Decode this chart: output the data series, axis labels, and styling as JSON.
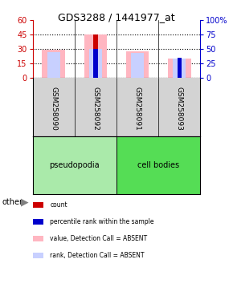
{
  "title": "GDS3288 / 1441977_at",
  "samples": [
    "GSM258090",
    "GSM258092",
    "GSM258091",
    "GSM258093"
  ],
  "ylim_left": [
    0,
    60
  ],
  "ylim_right": [
    0,
    100
  ],
  "yticks_left": [
    0,
    15,
    30,
    45,
    60
  ],
  "yticks_right": [
    0,
    25,
    50,
    75,
    100
  ],
  "pink_bars": [
    29,
    45,
    28,
    20
  ],
  "light_blue_bars": [
    27,
    30,
    26,
    20
  ],
  "red_bars": [
    0,
    45,
    0,
    17
  ],
  "blue_bars": [
    0,
    30,
    0,
    21
  ],
  "pink_color": "#FFB6C1",
  "light_blue_color": "#C8D0FF",
  "red_color": "#CC0000",
  "blue_color": "#0000CC",
  "left_axis_color": "#CC0000",
  "right_axis_color": "#0000CC",
  "bg_plot": "#FFFFFF",
  "bg_label_row": "#D3D3D3",
  "group_color": "#90EE90",
  "other_label": "other",
  "pseudo_label": "pseudopodia",
  "cell_label": "cell bodies",
  "legend_items": [
    {
      "color": "#CC0000",
      "label": "count"
    },
    {
      "color": "#0000CC",
      "label": "percentile rank within the sample"
    },
    {
      "color": "#FFB6C1",
      "label": "value, Detection Call = ABSENT"
    },
    {
      "color": "#C8D0FF",
      "label": "rank, Detection Call = ABSENT"
    }
  ]
}
